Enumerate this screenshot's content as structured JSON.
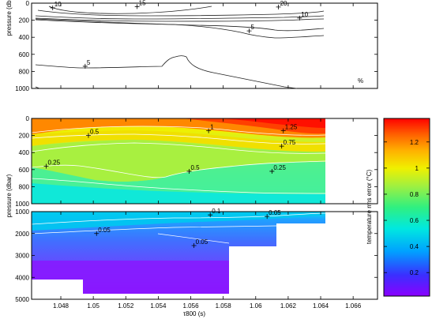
{
  "chart_data": [
    {
      "panel": "top",
      "type": "line",
      "ylabel": "pressure (dbar)",
      "unit_label": "%",
      "y_ticks": [
        "0",
        "200",
        "400",
        "600",
        "800",
        "1000"
      ],
      "ylim": [
        1000,
        0
      ],
      "contour_labels": [
        {
          "text": "10",
          "x": 1.0475,
          "y": 55
        },
        {
          "text": "15",
          "x": 1.0527,
          "y": 40
        },
        {
          "text": "20",
          "x": 1.0614,
          "y": 45
        },
        {
          "text": "10",
          "x": 1.0627,
          "y": 175
        },
        {
          "text": "5",
          "x": 1.0596,
          "y": 325
        },
        {
          "text": "5",
          "x": 1.0495,
          "y": 740
        }
      ]
    },
    {
      "panel": "middle",
      "type": "heatmap",
      "ylabel": "pressure (dbar)",
      "y_ticks": [
        "0",
        "200",
        "400",
        "600",
        "800",
        "1000"
      ],
      "ylim": [
        1000,
        0
      ],
      "contour_labels": [
        {
          "text": "1",
          "x": 1.0571,
          "y": 145
        },
        {
          "text": "1.25",
          "x": 1.0617,
          "y": 145
        },
        {
          "text": "0.5",
          "x": 1.0497,
          "y": 200
        },
        {
          "text": "0.75",
          "x": 1.0616,
          "y": 325
        },
        {
          "text": "0.25",
          "x": 1.0471,
          "y": 560
        },
        {
          "text": "0.5",
          "x": 1.0559,
          "y": 620
        },
        {
          "text": "0.25",
          "x": 1.061,
          "y": 620
        }
      ]
    },
    {
      "panel": "bottom",
      "type": "heatmap",
      "xlabel": "τ800 (s)",
      "x_ticks": [
        "1.048",
        "1.05",
        "1.052",
        "1.054",
        "1.056",
        "1.058",
        "1.06",
        "1.062",
        "1.064",
        "1.066"
      ],
      "xlim": [
        1.0462,
        1.0675
      ],
      "y_ticks": [
        "1000",
        "2000",
        "3000",
        "4000",
        "5000"
      ],
      "ylim": [
        5000,
        1000
      ],
      "contour_labels": [
        {
          "text": "0.1",
          "x": 1.0572,
          "y": 1150
        },
        {
          "text": "0.05",
          "x": 1.0607,
          "y": 1220
        },
        {
          "text": "0.05",
          "x": 1.0502,
          "y": 2000
        },
        {
          "text": "0.05",
          "x": 1.0562,
          "y": 2550
        }
      ]
    }
  ],
  "colorbar": {
    "label": "temperature rms error (°C)",
    "ticks": [
      "0.2",
      "0.4",
      "0.6",
      "0.8",
      "1",
      "1.2"
    ],
    "range": [
      0.02,
      1.38
    ],
    "colors": [
      "#8a00ff",
      "#3a30ff",
      "#00a0ff",
      "#00e8e0",
      "#30f080",
      "#a0f040",
      "#f0f000",
      "#ffb000",
      "#ff6000",
      "#ff0000"
    ]
  }
}
